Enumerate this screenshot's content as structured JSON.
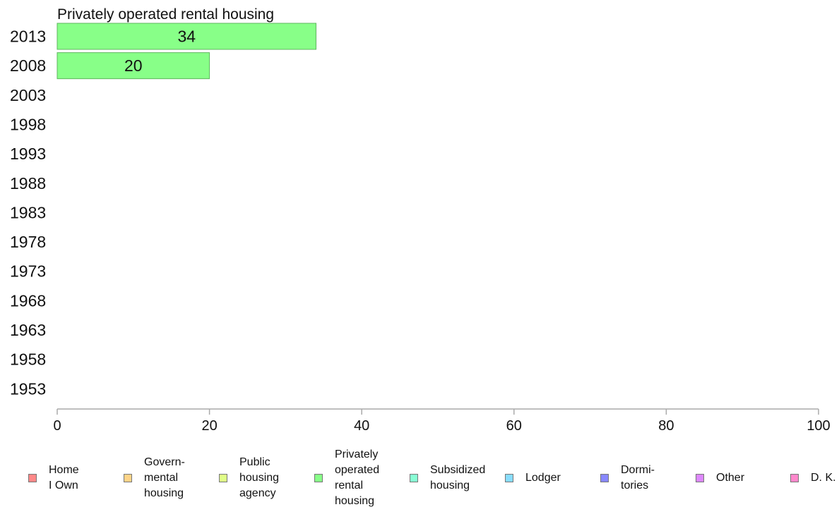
{
  "chart_data": {
    "type": "bar",
    "orientation": "horizontal",
    "title": "Privately operated rental housing",
    "categories": [
      "2013",
      "2008",
      "2003",
      "1998",
      "1993",
      "1988",
      "1983",
      "1978",
      "1973",
      "1968",
      "1963",
      "1958",
      "1953"
    ],
    "series": [
      {
        "name": "Privately operated rental housing",
        "color": "#88ff88",
        "values": [
          34,
          20,
          null,
          null,
          null,
          null,
          null,
          null,
          null,
          null,
          null,
          null,
          null
        ],
        "data_labels": [
          "34",
          "20",
          "",
          "",
          "",
          "",
          "",
          "",
          "",
          "",
          "",
          "",
          ""
        ]
      }
    ],
    "xlim": [
      0,
      100
    ],
    "xticks": [
      "0",
      "20",
      "40",
      "60",
      "80",
      "100"
    ],
    "grid": false,
    "legend_position": "bottom",
    "legend": [
      {
        "label": "Home\nI Own",
        "color": "#ff8888"
      },
      {
        "label": "Govern-\nmental\nhousing",
        "color": "#ffd488"
      },
      {
        "label": "Public\nhousing\nagency",
        "color": "#e0ff88"
      },
      {
        "label": "Privately\noperated\nrental\nhousing",
        "color": "#88ff88"
      },
      {
        "label": "Subsidized\nhousing",
        "color": "#88ffd4"
      },
      {
        "label": "Lodger",
        "color": "#88ddff"
      },
      {
        "label": "Dormi-\ntories",
        "color": "#8888ff"
      },
      {
        "label": "Other",
        "color": "#dd88ff"
      },
      {
        "label": "D. K.",
        "color": "#ff88cc"
      }
    ]
  }
}
